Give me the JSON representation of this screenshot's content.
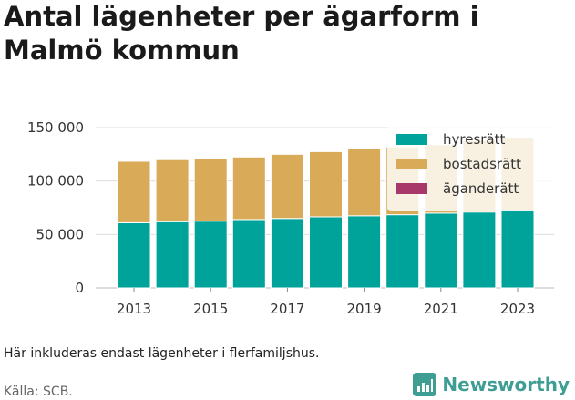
{
  "title": "Antal lägenheter per ägarform i Malmö kommun",
  "note": "Här inkluderas endast lägenheter i flerfamiljshus.",
  "source": "Källa: SCB.",
  "brand": {
    "name": "Newsworthy",
    "logo_icon": "newsworthy-chart-logo-icon",
    "color": "#3f9e94"
  },
  "chart_data": {
    "type": "bar",
    "stacked": true,
    "categories": [
      "2013",
      "2014",
      "2015",
      "2016",
      "2017",
      "2018",
      "2019",
      "2020",
      "2021",
      "2022",
      "2023"
    ],
    "x_tick_labels": [
      "2013",
      "2015",
      "2017",
      "2019",
      "2021",
      "2023"
    ],
    "series": [
      {
        "name": "hyresrätt",
        "color": "#00a39a",
        "values": [
          61000,
          62000,
          62500,
          64000,
          65000,
          66500,
          67500,
          68500,
          70000,
          71000,
          72500
        ]
      },
      {
        "name": "bostadsrätt",
        "color": "#d9ab59",
        "values": [
          57500,
          58000,
          58500,
          58500,
          60000,
          61000,
          62500,
          63500,
          64000,
          67000,
          68500
        ]
      },
      {
        "name": "äganderätt",
        "color": "#a8386a",
        "values": [
          0,
          0,
          0,
          0,
          0,
          0,
          0,
          0,
          0,
          0,
          0
        ]
      }
    ],
    "ylim": [
      0,
      150000
    ],
    "y_ticks": [
      0,
      50000,
      100000,
      150000
    ],
    "y_tick_labels": [
      "0",
      "50 000",
      "100 000",
      "150 000"
    ],
    "grid": true,
    "legend_position": "top-right"
  }
}
